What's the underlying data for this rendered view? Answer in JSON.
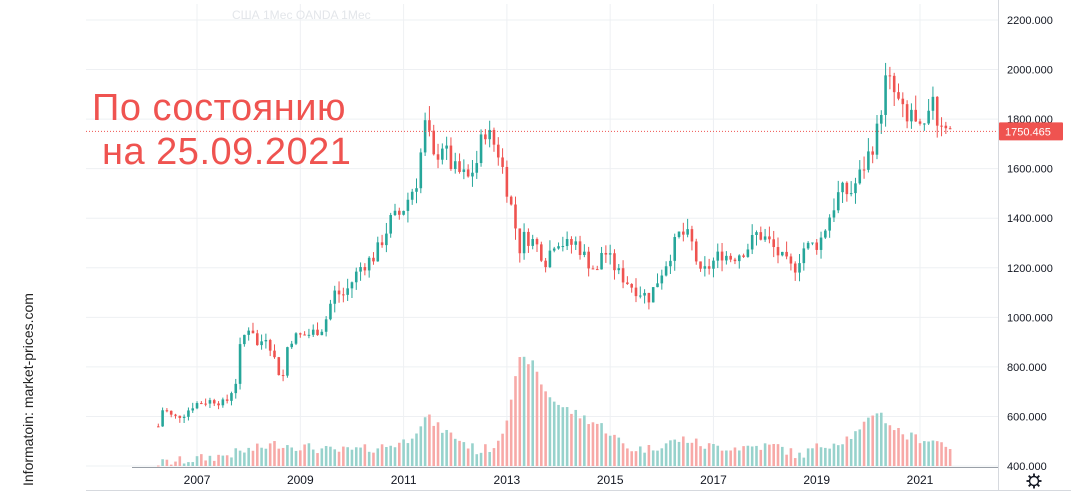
{
  "overlay": {
    "title_line1": "По состоянию",
    "title_line2": "на 25.09.2021",
    "color": "#ef5350"
  },
  "watermark": "США  1Мес  OANDA  1Мес",
  "side_credit": "Informatoin: market-prices.com",
  "settings_icon": "gear-icon",
  "colors": {
    "up": "#26a69a",
    "down": "#ef5350",
    "vol_up": "#97d2cc",
    "vol_down": "#f7a9a7",
    "grid": "#eef0f3",
    "axis_text": "#131722",
    "last_price_line": "#ef5350"
  },
  "chart_data": {
    "type": "candlestick",
    "title": "",
    "xlabel": "",
    "ylabel": "",
    "ylim": [
      400,
      2200
    ],
    "xlim": [
      2005.0,
      2022.66
    ],
    "yticks": [
      "2200.000",
      "2000.000",
      "1800.000",
      "1600.000",
      "1400.000",
      "1200.000",
      "1000.000",
      "800.000",
      "600.000",
      "400.000"
    ],
    "xticks": [
      "2007",
      "2009",
      "2011",
      "2013",
      "2015",
      "2017",
      "2019",
      "2021"
    ],
    "last_price": "1750.465",
    "grid": true,
    "close_path": [
      [
        2006.4,
        560
      ],
      [
        2006.5,
        640
      ],
      [
        2006.6,
        610
      ],
      [
        2006.7,
        595
      ],
      [
        2006.9,
        610
      ],
      [
        2007.1,
        650
      ],
      [
        2007.3,
        660
      ],
      [
        2007.5,
        665
      ],
      [
        2007.7,
        650
      ],
      [
        2007.9,
        740
      ],
      [
        2008.0,
        900
      ],
      [
        2008.2,
        980
      ],
      [
        2008.3,
        880
      ],
      [
        2008.5,
        930
      ],
      [
        2008.7,
        800
      ],
      [
        2008.8,
        740
      ],
      [
        2008.9,
        880
      ],
      [
        2009.0,
        920
      ],
      [
        2009.3,
        930
      ],
      [
        2009.6,
        960
      ],
      [
        2009.8,
        1100
      ],
      [
        2010.0,
        1090
      ],
      [
        2010.3,
        1200
      ],
      [
        2010.6,
        1250
      ],
      [
        2010.9,
        1390
      ],
      [
        2011.1,
        1420
      ],
      [
        2011.4,
        1550
      ],
      [
        2011.6,
        1820
      ],
      [
        2011.7,
        1620
      ],
      [
        2011.9,
        1700
      ],
      [
        2012.1,
        1600
      ],
      [
        2012.4,
        1560
      ],
      [
        2012.6,
        1640
      ],
      [
        2012.7,
        1770
      ],
      [
        2012.9,
        1700
      ],
      [
        2013.0,
        1660
      ],
      [
        2013.2,
        1480
      ],
      [
        2013.4,
        1280
      ],
      [
        2013.5,
        1330
      ],
      [
        2013.7,
        1300
      ],
      [
        2013.9,
        1230
      ],
      [
        2014.1,
        1320
      ],
      [
        2014.3,
        1290
      ],
      [
        2014.5,
        1300
      ],
      [
        2014.7,
        1230
      ],
      [
        2014.9,
        1180
      ],
      [
        2015.0,
        1280
      ],
      [
        2015.3,
        1180
      ],
      [
        2015.6,
        1120
      ],
      [
        2015.9,
        1080
      ],
      [
        2016.0,
        1120
      ],
      [
        2016.3,
        1250
      ],
      [
        2016.5,
        1340
      ],
      [
        2016.7,
        1320
      ],
      [
        2016.9,
        1170
      ],
      [
        2017.0,
        1190
      ],
      [
        2017.3,
        1260
      ],
      [
        2017.5,
        1240
      ],
      [
        2017.8,
        1280
      ],
      [
        2018.0,
        1340
      ],
      [
        2018.2,
        1310
      ],
      [
        2018.5,
        1230
      ],
      [
        2018.7,
        1190
      ],
      [
        2018.9,
        1280
      ],
      [
        2019.2,
        1300
      ],
      [
        2019.4,
        1410
      ],
      [
        2019.6,
        1510
      ],
      [
        2019.8,
        1500
      ],
      [
        2020.0,
        1580
      ],
      [
        2020.3,
        1730
      ],
      [
        2020.5,
        1970
      ],
      [
        2020.7,
        1880
      ],
      [
        2020.9,
        1780
      ],
      [
        2021.0,
        1850
      ],
      [
        2021.1,
        1730
      ],
      [
        2021.3,
        1770
      ],
      [
        2021.4,
        1910
      ],
      [
        2021.5,
        1770
      ],
      [
        2021.6,
        1810
      ],
      [
        2021.73,
        1750
      ]
    ],
    "volume_path": [
      [
        2006.4,
        410
      ],
      [
        2007.0,
        425
      ],
      [
        2007.6,
        440
      ],
      [
        2008.3,
        470
      ],
      [
        2008.7,
        490
      ],
      [
        2009.3,
        475
      ],
      [
        2009.8,
        460
      ],
      [
        2010.3,
        465
      ],
      [
        2010.8,
        480
      ],
      [
        2011.2,
        500
      ],
      [
        2011.6,
        600
      ],
      [
        2011.8,
        560
      ],
      [
        2012.2,
        510
      ],
      [
        2012.6,
        460
      ],
      [
        2012.9,
        480
      ],
      [
        2013.1,
        560
      ],
      [
        2013.4,
        820
      ],
      [
        2013.6,
        830
      ],
      [
        2013.9,
        700
      ],
      [
        2014.2,
        640
      ],
      [
        2014.6,
        600
      ],
      [
        2015.0,
        560
      ],
      [
        2015.5,
        470
      ],
      [
        2015.9,
        470
      ],
      [
        2016.2,
        490
      ],
      [
        2016.6,
        510
      ],
      [
        2017.0,
        480
      ],
      [
        2017.6,
        475
      ],
      [
        2018.0,
        480
      ],
      [
        2018.4,
        480
      ],
      [
        2018.8,
        440
      ],
      [
        2019.2,
        480
      ],
      [
        2019.6,
        500
      ],
      [
        2020.0,
        540
      ],
      [
        2020.3,
        630
      ],
      [
        2020.6,
        560
      ],
      [
        2020.9,
        520
      ],
      [
        2021.2,
        510
      ],
      [
        2021.5,
        500
      ],
      [
        2021.73,
        480
      ]
    ]
  }
}
